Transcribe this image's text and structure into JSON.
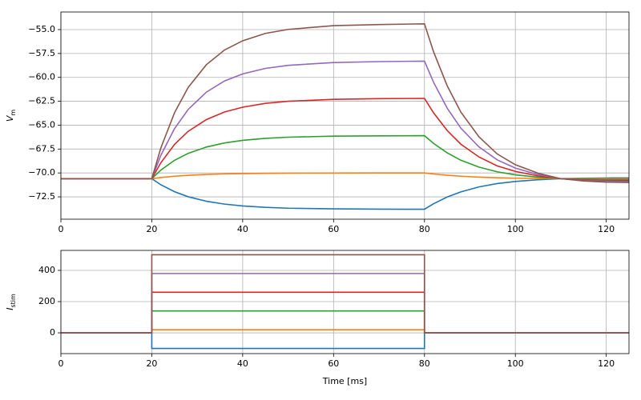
{
  "chart_data": [
    {
      "type": "line",
      "ylabel": "V",
      "ylabel_sub": "m",
      "x": [
        0,
        20,
        22,
        25,
        28,
        32,
        36,
        40,
        45,
        50,
        60,
        70,
        80,
        82,
        85,
        88,
        92,
        96,
        100,
        105,
        110,
        115,
        120,
        125
      ],
      "xlim": [
        0,
        125
      ],
      "xticks": [
        0,
        20,
        40,
        60,
        80,
        100,
        120
      ],
      "ylim": [
        -74.84,
        -53.16
      ],
      "yticks": [
        {
          "value": -55.0,
          "label": "−55.0"
        },
        {
          "value": -57.5,
          "label": "−57.5"
        },
        {
          "value": -60.0,
          "label": "−60.0"
        },
        {
          "value": -62.5,
          "label": "−62.5"
        },
        {
          "value": -65.0,
          "label": "−65.0"
        },
        {
          "value": -67.5,
          "label": "−67.5"
        },
        {
          "value": -70.0,
          "label": "−70.0"
        },
        {
          "value": -72.5,
          "label": "−72.5"
        }
      ],
      "grid": true,
      "series": [
        {
          "color": "#1f77b4",
          "values": [
            -70.6,
            -70.6,
            -71.24,
            -71.96,
            -72.49,
            -72.96,
            -73.26,
            -73.45,
            -73.6,
            -73.69,
            -73.76,
            -73.79,
            -73.8,
            -73.22,
            -72.52,
            -71.98,
            -71.46,
            -71.11,
            -70.89,
            -70.71,
            -70.6,
            -70.55,
            -70.53,
            -70.52
          ]
        },
        {
          "color": "#ff7f0e",
          "values": [
            -70.6,
            -70.6,
            -70.48,
            -70.34,
            -70.25,
            -70.16,
            -70.1,
            -70.07,
            -70.04,
            -70.02,
            -70.01,
            -70.0,
            -70.0,
            -70.11,
            -70.24,
            -70.34,
            -70.44,
            -70.5,
            -70.55,
            -70.58,
            -70.6,
            -70.61,
            -70.61,
            -70.62
          ]
        },
        {
          "color": "#2ca02c",
          "values": [
            -70.6,
            -70.6,
            -69.7,
            -68.68,
            -67.95,
            -67.29,
            -66.86,
            -66.59,
            -66.38,
            -66.26,
            -66.15,
            -66.12,
            -66.1,
            -66.91,
            -67.9,
            -68.67,
            -69.39,
            -69.88,
            -70.2,
            -70.44,
            -70.6,
            -70.67,
            -70.7,
            -70.71
          ]
        },
        {
          "color": "#d62728",
          "values": [
            -70.6,
            -70.6,
            -68.93,
            -67.02,
            -65.65,
            -64.42,
            -63.62,
            -63.12,
            -62.72,
            -62.5,
            -62.3,
            -62.23,
            -62.2,
            -63.71,
            -65.56,
            -66.99,
            -68.33,
            -69.26,
            -69.84,
            -70.31,
            -70.6,
            -70.73,
            -70.79,
            -70.81
          ]
        },
        {
          "color": "#9467bd",
          "values": [
            -70.6,
            -70.6,
            -68.15,
            -65.36,
            -63.36,
            -61.55,
            -60.38,
            -59.64,
            -59.06,
            -58.74,
            -58.45,
            -58.35,
            -58.3,
            -60.51,
            -63.22,
            -65.31,
            -67.28,
            -68.63,
            -69.49,
            -70.17,
            -70.6,
            -70.79,
            -70.87,
            -70.91
          ]
        },
        {
          "color": "#8c564b",
          "values": [
            -70.6,
            -70.6,
            -67.38,
            -63.7,
            -61.06,
            -58.68,
            -57.14,
            -56.17,
            -55.4,
            -54.98,
            -54.59,
            -54.47,
            -54.4,
            -57.32,
            -60.88,
            -63.63,
            -66.23,
            -68.01,
            -69.14,
            -70.03,
            -70.6,
            -70.84,
            -70.96,
            -71.0
          ]
        }
      ]
    },
    {
      "type": "line",
      "ylabel": "I",
      "ylabel_sub": "stim",
      "xlabel": "Time [ms]",
      "x": [
        0,
        20,
        20,
        80,
        80,
        125
      ],
      "xlim": [
        0,
        125
      ],
      "xticks": [
        0,
        20,
        40,
        60,
        80,
        100,
        120
      ],
      "ylim": [
        -133,
        528
      ],
      "yticks": [
        0,
        200,
        400
      ],
      "grid": true,
      "series": [
        {
          "color": "#1f77b4",
          "values": [
            0,
            0,
            -100,
            -100,
            0,
            0
          ]
        },
        {
          "color": "#ff7f0e",
          "values": [
            0,
            0,
            20,
            20,
            0,
            0
          ]
        },
        {
          "color": "#2ca02c",
          "values": [
            0,
            0,
            140,
            140,
            0,
            0
          ]
        },
        {
          "color": "#d62728",
          "values": [
            0,
            0,
            260,
            260,
            0,
            0
          ]
        },
        {
          "color": "#9467bd",
          "values": [
            0,
            0,
            380,
            380,
            0,
            0
          ]
        },
        {
          "color": "#8c564b",
          "values": [
            0,
            0,
            500,
            500,
            0,
            0
          ]
        }
      ]
    }
  ]
}
